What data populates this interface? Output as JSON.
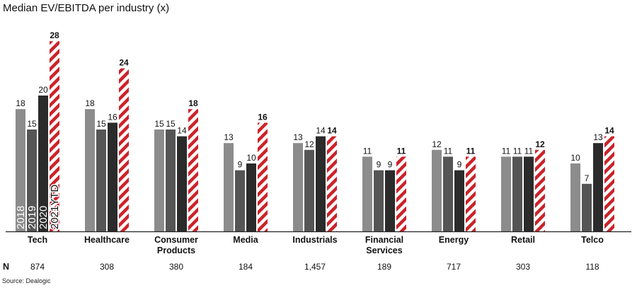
{
  "title": "Median EV/EBITDA per industry (x)",
  "source": "Source: Dealogic",
  "n_label": "N",
  "chart_data": {
    "type": "bar",
    "title": "Median EV/EBITDA per industry (x)",
    "xlabel": "",
    "ylabel": "",
    "ylim": [
      0,
      28
    ],
    "grid": false,
    "legend": "in-bar labels on first category",
    "categories": [
      [
        "Tech"
      ],
      [
        "Healthcare"
      ],
      [
        "Consumer",
        "Products"
      ],
      [
        "Media"
      ],
      [
        "Industrials"
      ],
      [
        "Financial",
        "Services"
      ],
      [
        "Energy"
      ],
      [
        "Retail"
      ],
      [
        "Telco"
      ]
    ],
    "n_values": [
      "874",
      "308",
      "380",
      "184",
      "1,457",
      "189",
      "717",
      "303",
      "118"
    ],
    "series": [
      {
        "name": "2018",
        "color": "#8c8c8c",
        "values": [
          18,
          18,
          15,
          13,
          13,
          11,
          12,
          11,
          10
        ]
      },
      {
        "name": "2019",
        "color": "#555555",
        "values": [
          15,
          15,
          15,
          9,
          12,
          9,
          11,
          11,
          7
        ]
      },
      {
        "name": "2020",
        "color": "#2b2b2b",
        "values": [
          20,
          16,
          14,
          10,
          14,
          9,
          9,
          11,
          13
        ]
      },
      {
        "name": "2021YTD",
        "color": "#cc2229",
        "values": [
          28,
          24,
          18,
          16,
          14,
          11,
          11,
          12,
          14
        ]
      }
    ]
  }
}
